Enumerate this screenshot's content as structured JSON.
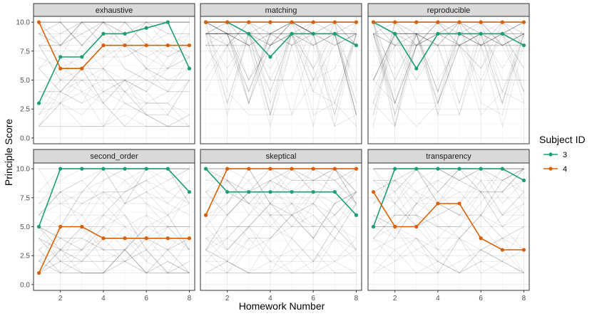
{
  "chart_data": {
    "type": "line",
    "title": "",
    "xlabel": "Homework Number",
    "ylabel": "Principle Score",
    "xlim": [
      0.75,
      8.25
    ],
    "ylim": [
      -0.5,
      10.5
    ],
    "x_ticks": [
      2,
      4,
      6,
      8
    ],
    "x_tick_labels": [
      "2",
      "4",
      "6",
      "8"
    ],
    "y_ticks": [
      0,
      2.5,
      5,
      7.5,
      10
    ],
    "y_tick_labels": [
      "0.0",
      "2.5",
      "5.0",
      "7.5",
      "10.0"
    ],
    "x": [
      1,
      2,
      3,
      4,
      5,
      6,
      7,
      8
    ],
    "legend": {
      "title": "Subject ID",
      "placement": "right",
      "entries": [
        {
          "label": "3",
          "color": "#1b9e77"
        },
        {
          "label": "4",
          "color": "#d95f02"
        }
      ]
    },
    "background_series_note": "Other subjects drawn as light grey lines",
    "facets": [
      {
        "name": "exhaustive",
        "series": [
          {
            "name": "3",
            "values": [
              3,
              7,
              7,
              9,
              9,
              9.5,
              10,
              6
            ]
          },
          {
            "name": "4",
            "values": [
              10,
              6,
              6,
              8,
              8,
              8,
              8,
              8
            ]
          }
        ]
      },
      {
        "name": "matching",
        "series": [
          {
            "name": "3",
            "values": [
              10,
              10,
              9,
              7,
              9,
              9,
              9,
              8
            ]
          },
          {
            "name": "4",
            "values": [
              10,
              10,
              10,
              10,
              10,
              10,
              10,
              10
            ]
          }
        ]
      },
      {
        "name": "reproducible",
        "series": [
          {
            "name": "3",
            "values": [
              10,
              9,
              6,
              9,
              9,
              9,
              9,
              8
            ]
          },
          {
            "name": "4",
            "values": [
              10,
              10,
              10,
              10,
              10,
              10,
              10,
              10
            ]
          }
        ]
      },
      {
        "name": "second_order",
        "series": [
          {
            "name": "3",
            "values": [
              5,
              10,
              10,
              10,
              10,
              10,
              10,
              8
            ]
          },
          {
            "name": "4",
            "values": [
              1,
              5,
              5,
              4,
              4,
              4,
              4,
              4
            ]
          }
        ]
      },
      {
        "name": "skeptical",
        "series": [
          {
            "name": "3",
            "values": [
              10,
              8,
              8,
              8,
              8,
              8,
              8,
              6
            ]
          },
          {
            "name": "4",
            "values": [
              6,
              10,
              10,
              10,
              10,
              10,
              10,
              10
            ]
          }
        ]
      },
      {
        "name": "transparency",
        "series": [
          {
            "name": "3",
            "values": [
              5,
              10,
              10,
              10,
              10,
              10,
              10,
              9
            ]
          },
          {
            "name": "4",
            "values": [
              8,
              5,
              5,
              7,
              7,
              4,
              3,
              3
            ]
          }
        ]
      }
    ]
  }
}
